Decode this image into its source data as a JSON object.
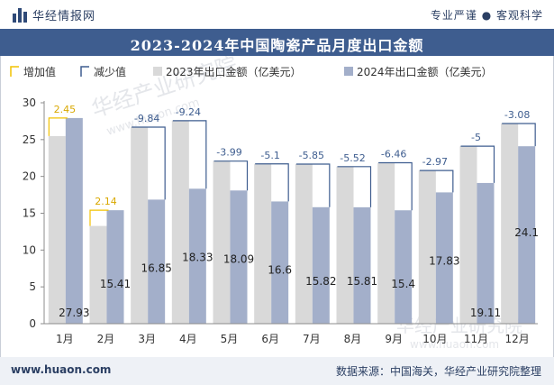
{
  "header": {
    "brand_name": "华经情报网",
    "tagline": "专业严谨 ● 客观科学"
  },
  "title": "2023-2024年中国陶瓷产品月度出口金额",
  "footer": {
    "website": "www.huaon.com",
    "source": "数据来源：中国海关，华经产业研究院整理"
  },
  "watermark": "华经产业研究院",
  "watermark_url": "www.huaon.com",
  "colors": {
    "header_bg": "#3e5d8f",
    "bar_2023": "#d9d9d9",
    "bar_2024": "#a3afca",
    "increase": "#f2c200",
    "decrease": "#3e5d8f",
    "footer_bg": "#eef1f6"
  },
  "chart_data": {
    "type": "bar",
    "categories": [
      "1月",
      "2月",
      "3月",
      "4月",
      "5月",
      "6月",
      "7月",
      "8月",
      "9月",
      "10月",
      "11月",
      "12月"
    ],
    "series": [
      {
        "name": "2023年出口金额（亿美元）",
        "values": [
          25.48,
          13.27,
          26.69,
          27.57,
          22.08,
          21.7,
          21.67,
          21.33,
          21.86,
          20.8,
          24.11,
          27.18
        ]
      },
      {
        "name": "2024年出口金额（亿美元）",
        "values": [
          27.93,
          15.41,
          16.85,
          18.33,
          18.09,
          16.6,
          15.82,
          15.81,
          15.4,
          17.83,
          19.11,
          24.1
        ]
      }
    ],
    "change": [
      2.45,
      2.14,
      -9.84,
      -9.24,
      -3.99,
      -5.1,
      -5.85,
      -5.52,
      -6.46,
      -2.97,
      -5,
      -3.08
    ],
    "change_labels": [
      "2.45",
      "2.14",
      "-9.84",
      "-9.24",
      "-3.99",
      "-5.1",
      "-5.85",
      "-5.52",
      "-6.46",
      "-2.97",
      "-5",
      "-3.08"
    ],
    "value_labels_2024": [
      "27.93",
      "15.41",
      "16.85",
      "18.33",
      "18.09",
      "16.6",
      "15.82",
      "15.81",
      "15.4",
      "17.83",
      "19.11",
      "24.1"
    ],
    "legend": [
      "增加值",
      "减少值",
      "2023年出口金额（亿美元）",
      "2024年出口金额（亿美元）"
    ],
    "legend_placement": "top-left",
    "ylim": [
      0,
      30
    ],
    "yticks": [
      "0",
      "5",
      "10",
      "15",
      "20",
      "25",
      "30"
    ],
    "grid": false
  }
}
